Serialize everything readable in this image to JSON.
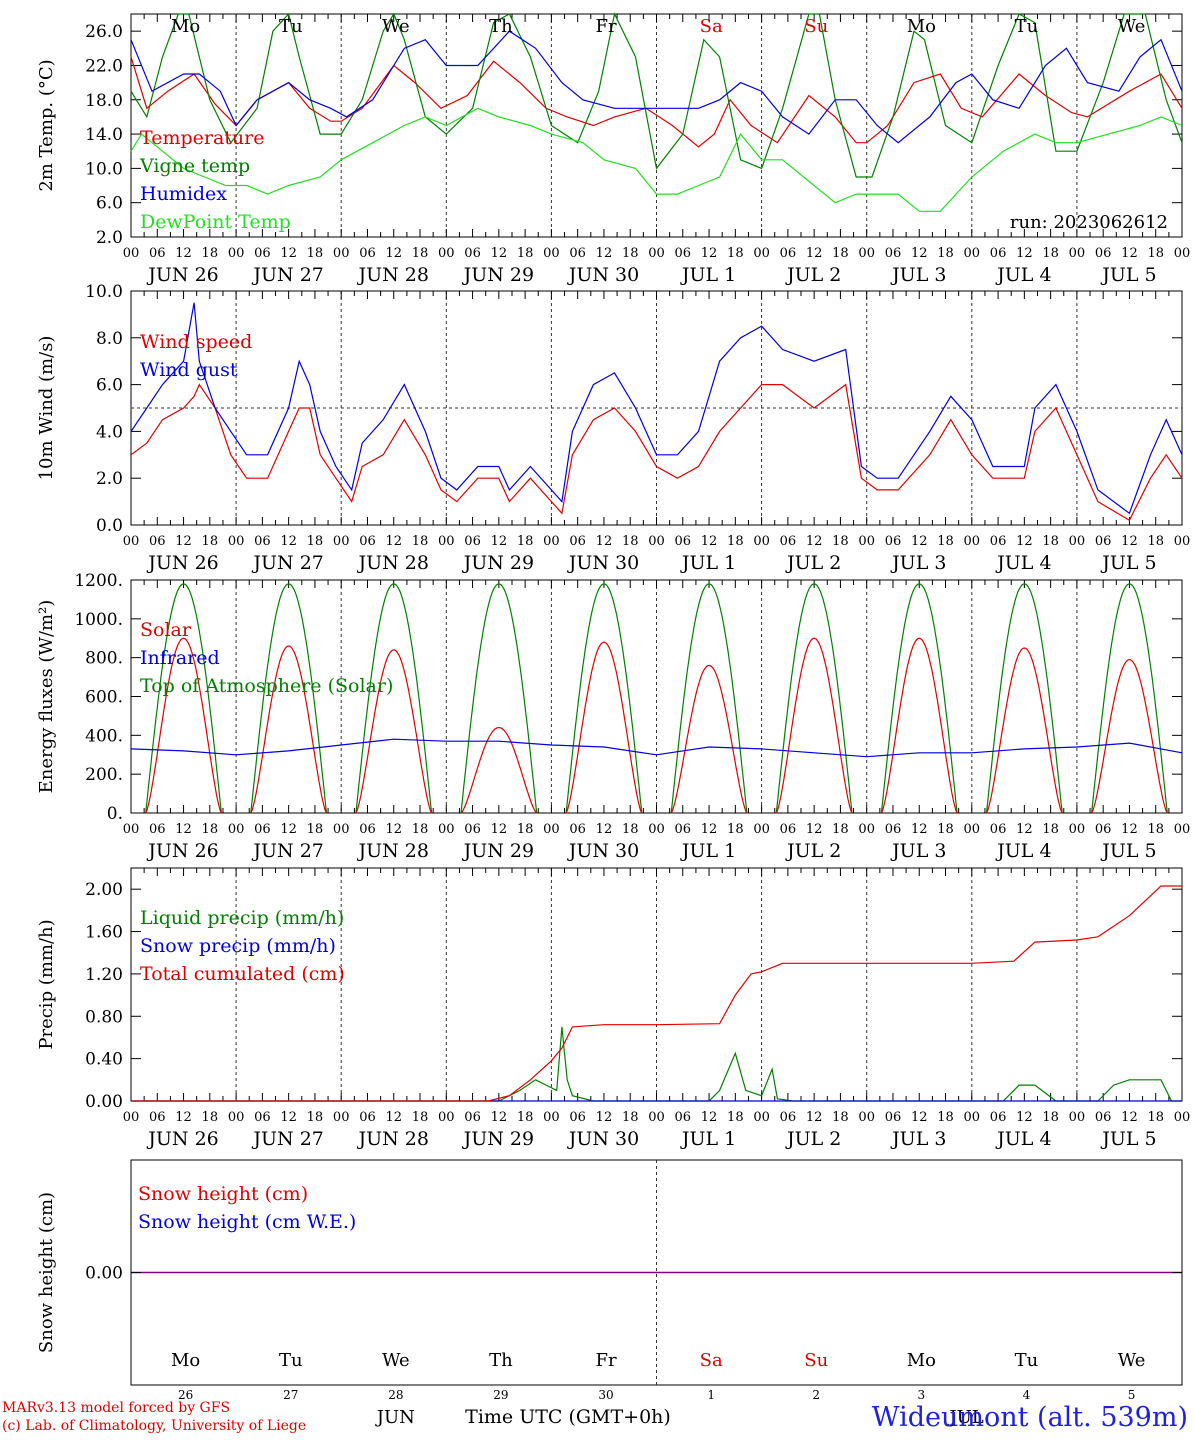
{
  "run_label": "run: 2023062612",
  "footer": {
    "model": "MARv3.13 model forced by GFS",
    "lab": "(c) Lab. of Climatology, University of Liege",
    "month": "JUN",
    "time_label": "Time UTC (GMT+0h)",
    "month2": "JUL",
    "station": "Wideumont (alt. 539m)"
  },
  "days": [
    {
      "date": "JUN 26",
      "dow": "Mo",
      "dom": "26",
      "weekend": false
    },
    {
      "date": "JUN 27",
      "dow": "Tu",
      "dom": "27",
      "weekend": false
    },
    {
      "date": "JUN 28",
      "dow": "We",
      "dom": "28",
      "weekend": false
    },
    {
      "date": "JUN 29",
      "dow": "Th",
      "dom": "29",
      "weekend": false
    },
    {
      "date": "JUN 30",
      "dow": "Fr",
      "dom": "30",
      "weekend": false
    },
    {
      "date": "JUL  1",
      "dow": "Sa",
      "dom": "1",
      "weekend": true
    },
    {
      "date": "JUL  2",
      "dow": "Su",
      "dom": "2",
      "weekend": true
    },
    {
      "date": "JUL  3",
      "dow": "Mo",
      "dom": "3",
      "weekend": false
    },
    {
      "date": "JUL  4",
      "dow": "Tu",
      "dom": "4",
      "weekend": false
    },
    {
      "date": "JUL  5",
      "dow": "We",
      "dom": "5",
      "weekend": false
    }
  ],
  "hour_ticks": [
    "00",
    "06",
    "12",
    "18"
  ],
  "colors": {
    "red": "#e00000",
    "green": "#008000",
    "blue": "#0000e0",
    "lightgreen": "#20e020",
    "purple": "#800080",
    "grid": "#444444"
  },
  "chart_data": [
    {
      "type": "line",
      "ylabel": "2m Temp. (°C)",
      "ylim": [
        2,
        28
      ],
      "yticks": [
        "2.0",
        "6.0",
        "10.0",
        "14.0",
        "18.0",
        "22.0",
        "26.0"
      ],
      "x_unit": "day offset from JUN 26 00 UTC",
      "series": [
        {
          "name": "Temperature",
          "color": "red",
          "x": [
            0,
            0.15,
            0.35,
            0.6,
            0.8,
            1.0,
            1.2,
            1.5,
            1.7,
            1.9,
            2.0,
            2.2,
            2.5,
            2.7,
            2.95,
            3.2,
            3.45,
            3.7,
            3.95,
            4.15,
            4.4,
            4.6,
            4.9,
            5.15,
            5.4,
            5.55,
            5.7,
            5.9,
            6.15,
            6.45,
            6.7,
            6.9,
            7.0,
            7.2,
            7.45,
            7.7,
            7.9,
            8.1,
            8.45,
            8.7,
            8.95,
            9.1,
            9.5,
            9.8,
            10.0
          ],
          "y": [
            23,
            17,
            19,
            21,
            17.5,
            15,
            18,
            20,
            17,
            15.5,
            15.5,
            17,
            22,
            20,
            17,
            18.5,
            22.5,
            20,
            17,
            16,
            15,
            16,
            17,
            15,
            12.5,
            14,
            18,
            15,
            13,
            18.5,
            16,
            13,
            13,
            15,
            20,
            21,
            17,
            16,
            21,
            18.5,
            16.5,
            16,
            19,
            21,
            17
          ]
        },
        {
          "name": "Vigne temp",
          "color": "green",
          "x": [
            0,
            0.15,
            0.3,
            0.45,
            0.55,
            0.75,
            0.95,
            1.2,
            1.35,
            1.5,
            1.6,
            1.8,
            2.0,
            2.2,
            2.4,
            2.5,
            2.6,
            2.8,
            3.0,
            3.25,
            3.45,
            3.6,
            3.8,
            4.0,
            4.25,
            4.45,
            4.6,
            4.8,
            5.0,
            5.25,
            5.45,
            5.6,
            5.8,
            6.0,
            6.2,
            6.45,
            6.55,
            6.7,
            6.9,
            7.05,
            7.25,
            7.45,
            7.55,
            7.75,
            8.0,
            8.25,
            8.45,
            8.6,
            8.8,
            9.0,
            9.25,
            9.45,
            9.65,
            9.85,
            10.0
          ],
          "y": [
            19,
            16,
            23,
            29,
            29,
            18,
            13,
            17,
            26,
            29,
            23,
            14,
            14,
            18,
            26,
            29,
            25,
            16,
            14,
            17,
            27,
            29,
            23,
            15,
            13,
            19,
            28,
            23,
            10,
            14,
            25,
            23,
            11,
            10,
            17,
            28,
            28,
            18,
            9,
            9,
            16,
            26,
            25,
            15,
            13,
            22,
            29,
            27,
            12,
            12,
            20,
            28,
            29,
            18,
            13
          ]
        },
        {
          "name": "Humidex",
          "color": "blue",
          "x": [
            0,
            0.2,
            0.5,
            0.65,
            0.85,
            1.0,
            1.2,
            1.5,
            1.7,
            1.9,
            2.05,
            2.3,
            2.6,
            2.8,
            3.0,
            3.3,
            3.6,
            3.85,
            4.1,
            4.3,
            4.6,
            4.85,
            5.1,
            5.4,
            5.6,
            5.8,
            6.0,
            6.2,
            6.45,
            6.7,
            6.9,
            7.1,
            7.3,
            7.6,
            7.85,
            8.0,
            8.2,
            8.45,
            8.7,
            8.9,
            9.1,
            9.4,
            9.6,
            9.8,
            10.0
          ],
          "y": [
            25,
            19,
            21,
            21,
            19,
            15,
            18,
            20,
            18,
            17,
            16,
            18,
            24,
            25,
            22,
            22,
            26,
            24,
            20,
            18,
            17,
            17,
            17,
            17,
            18,
            20,
            19,
            16,
            14,
            18,
            18,
            15,
            13,
            16,
            20,
            21,
            18,
            17,
            22,
            24,
            20,
            19,
            23,
            25,
            19
          ]
        },
        {
          "name": "DewPoint Temp",
          "color": "lightgreen",
          "x": [
            0,
            0.1,
            0.3,
            0.5,
            0.7,
            0.9,
            1.1,
            1.3,
            1.5,
            1.8,
            2.0,
            2.3,
            2.6,
            2.8,
            3.0,
            3.3,
            3.5,
            3.8,
            4.0,
            4.3,
            4.5,
            4.8,
            5.0,
            5.2,
            5.4,
            5.6,
            5.8,
            6.0,
            6.2,
            6.4,
            6.7,
            6.9,
            7.1,
            7.3,
            7.5,
            7.7,
            8.0,
            8.3,
            8.6,
            8.8,
            9.0,
            9.3,
            9.6,
            9.8,
            10.0
          ],
          "y": [
            12,
            14,
            12,
            10,
            9,
            8,
            8,
            7,
            8,
            9,
            11,
            13,
            15,
            16,
            15,
            17,
            16,
            15,
            14,
            13,
            11,
            10,
            7,
            7,
            8,
            9,
            14,
            11,
            11,
            9,
            6,
            7,
            7,
            7,
            5,
            5,
            9,
            12,
            14,
            13,
            13,
            14,
            15,
            16,
            15
          ]
        }
      ],
      "labels": [
        "Temperature",
        "Vigne temp",
        "Humidex",
        "DewPoint Temp"
      ]
    },
    {
      "type": "line",
      "ylabel": "10m Wind (m/s)",
      "ylim": [
        0,
        10
      ],
      "yticks": [
        "0.0",
        "2.0",
        "4.0",
        "6.0",
        "8.0",
        "10.0"
      ],
      "hline": 5,
      "series": [
        {
          "name": "Wind speed",
          "color": "red",
          "x": [
            0,
            0.15,
            0.3,
            0.5,
            0.6,
            0.65,
            0.8,
            0.95,
            1.1,
            1.3,
            1.5,
            1.6,
            1.7,
            1.8,
            1.95,
            2.1,
            2.2,
            2.4,
            2.6,
            2.8,
            2.95,
            3.1,
            3.3,
            3.5,
            3.6,
            3.8,
            4.0,
            4.1,
            4.2,
            4.4,
            4.6,
            4.8,
            5.0,
            5.2,
            5.4,
            5.6,
            5.8,
            6.0,
            6.2,
            6.5,
            6.8,
            6.95,
            7.1,
            7.3,
            7.6,
            7.8,
            8.0,
            8.2,
            8.5,
            8.6,
            8.8,
            9.0,
            9.2,
            9.5,
            9.7,
            9.85,
            10.0
          ],
          "y": [
            3,
            3.5,
            4.5,
            5,
            5.5,
            6,
            5,
            3,
            2,
            2,
            4,
            5,
            5,
            3,
            2,
            1,
            2.5,
            3,
            4.5,
            3,
            1.5,
            1,
            2,
            2,
            1,
            2,
            1,
            0.5,
            3,
            4.5,
            5,
            4,
            2.5,
            2,
            2.5,
            4,
            5,
            6,
            6,
            5,
            6,
            2,
            1.5,
            1.5,
            3,
            4.5,
            3,
            2,
            2,
            4,
            5,
            3,
            1,
            0.2,
            2,
            3,
            2
          ]
        },
        {
          "name": "Wind gust",
          "color": "blue",
          "x": [
            0,
            0.15,
            0.3,
            0.5,
            0.6,
            0.65,
            0.8,
            0.95,
            1.1,
            1.3,
            1.5,
            1.6,
            1.7,
            1.8,
            1.95,
            2.1,
            2.2,
            2.4,
            2.6,
            2.8,
            2.95,
            3.1,
            3.3,
            3.5,
            3.6,
            3.8,
            4.0,
            4.1,
            4.2,
            4.4,
            4.6,
            4.8,
            5.0,
            5.2,
            5.4,
            5.6,
            5.8,
            6.0,
            6.2,
            6.5,
            6.8,
            6.95,
            7.1,
            7.3,
            7.6,
            7.8,
            8.0,
            8.2,
            8.5,
            8.6,
            8.8,
            9.0,
            9.2,
            9.5,
            9.7,
            9.85,
            10.0
          ],
          "y": [
            4,
            5,
            6,
            7,
            9.5,
            7,
            5,
            4,
            3,
            3,
            5,
            7,
            6,
            4,
            2.5,
            1.5,
            3.5,
            4.5,
            6,
            4,
            2,
            1.5,
            2.5,
            2.5,
            1.5,
            2.5,
            1.5,
            1,
            4,
            6,
            6.5,
            5,
            3,
            3,
            4,
            7,
            8,
            8.5,
            7.5,
            7,
            7.5,
            2.5,
            2,
            2,
            4,
            5.5,
            4.5,
            2.5,
            2.5,
            5,
            6,
            4,
            1.5,
            0.5,
            3,
            4.5,
            3
          ]
        }
      ],
      "labels": [
        "Wind speed",
        "Wind gust"
      ]
    },
    {
      "type": "line",
      "ylabel": "Energy fluxes (W/m²)",
      "ylim": [
        0,
        1200
      ],
      "yticks": [
        "0.",
        "200.",
        "400.",
        "600.",
        "800.",
        "1000.",
        "1200."
      ],
      "series": [
        {
          "name": "Solar",
          "color": "red",
          "peaks": [
            900,
            860,
            840,
            440,
            880,
            760,
            900,
            900,
            850,
            790
          ]
        },
        {
          "name": "Infrared",
          "color": "blue",
          "x": [
            0,
            0.5,
            1.0,
            1.5,
            2.0,
            2.5,
            3.0,
            3.5,
            4.0,
            4.5,
            5.0,
            5.5,
            6.0,
            6.5,
            7.0,
            7.5,
            8.0,
            8.5,
            9.0,
            9.5,
            10.0
          ],
          "y": [
            330,
            320,
            300,
            320,
            350,
            380,
            370,
            370,
            350,
            340,
            300,
            340,
            330,
            310,
            290,
            310,
            310,
            330,
            340,
            360,
            310
          ]
        },
        {
          "name": "Top of Atmosphere (Solar)",
          "color": "green",
          "peak": 1180
        }
      ],
      "labels": [
        "Solar",
        "Infrared",
        "Top of Atmosphere (Solar)"
      ]
    },
    {
      "type": "line",
      "ylabel": "Precip (mm/h)",
      "ylim": [
        0,
        2.2
      ],
      "yticks": [
        "0.00",
        "0.40",
        "0.80",
        "1.20",
        "1.60",
        "2.00"
      ],
      "series": [
        {
          "name": "Liquid precip (mm/h)",
          "color": "green",
          "x": [
            0,
            3.5,
            3.7,
            3.85,
            3.95,
            4.05,
            4.1,
            4.15,
            4.2,
            4.4,
            5.5,
            5.6,
            5.75,
            5.85,
            6.0,
            6.1,
            6.15,
            6.3,
            8.3,
            8.45,
            8.6,
            8.8,
            9.2,
            9.35,
            9.5,
            9.8,
            9.9,
            10.0
          ],
          "y": [
            0,
            0,
            0.1,
            0.2,
            0.15,
            0.1,
            0.7,
            0.2,
            0.05,
            0,
            0,
            0.1,
            0.45,
            0.1,
            0.05,
            0.3,
            0.02,
            0,
            0,
            0.15,
            0.15,
            0,
            0,
            0.15,
            0.2,
            0.2,
            0,
            0
          ]
        },
        {
          "name": "Snow precip (mm/h)",
          "color": "blue",
          "x": [
            0,
            10
          ],
          "y": [
            0,
            0
          ]
        },
        {
          "name": "Total cumulated (cm)",
          "color": "red",
          "x": [
            0,
            3.4,
            3.6,
            3.8,
            4.0,
            4.1,
            4.2,
            4.5,
            5.0,
            5.6,
            5.75,
            5.9,
            6.0,
            6.2,
            7.0,
            8.0,
            8.4,
            8.6,
            9.0,
            9.2,
            9.5,
            9.8,
            10.0
          ],
          "y": [
            0,
            0,
            0.05,
            0.2,
            0.38,
            0.5,
            0.7,
            0.72,
            0.72,
            0.73,
            1.0,
            1.2,
            1.22,
            1.3,
            1.3,
            1.3,
            1.32,
            1.5,
            1.52,
            1.55,
            1.75,
            2.03,
            2.03
          ]
        }
      ],
      "labels": [
        "Liquid precip (mm/h)",
        "Snow precip (mm/h)",
        "Total cumulated (cm)"
      ]
    },
    {
      "type": "line",
      "ylabel": "Snow height (cm)",
      "yticks": [
        "0.00"
      ],
      "series": [
        {
          "name": "Snow height (cm)",
          "color": "red",
          "x": [
            0,
            10
          ],
          "y": [
            0,
            0
          ]
        },
        {
          "name": "Snow height (cm W.E.)",
          "color": "blue",
          "x": [
            0,
            10
          ],
          "y": [
            0,
            0
          ]
        }
      ],
      "labels": [
        "Snow height (cm)",
        "Snow height (cm W.E.)"
      ]
    }
  ]
}
